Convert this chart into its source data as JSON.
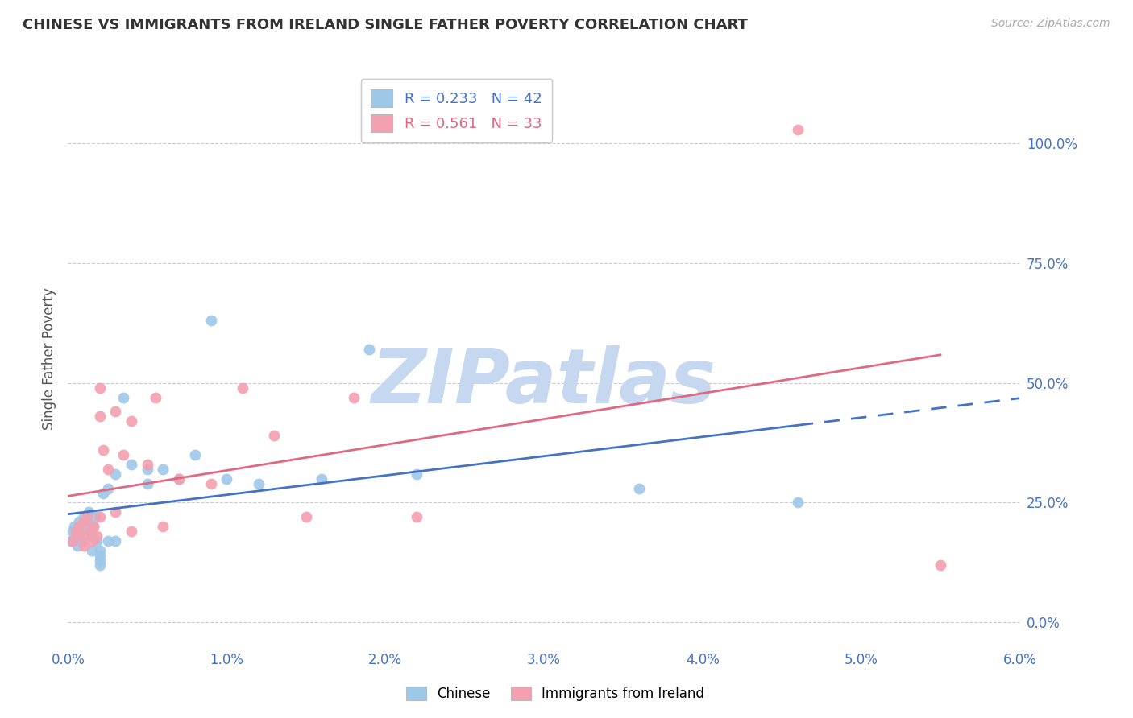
{
  "title": "CHINESE VS IMMIGRANTS FROM IRELAND SINGLE FATHER POVERTY CORRELATION CHART",
  "source": "Source: ZipAtlas.com",
  "ylabel": "Single Father Poverty",
  "xlim": [
    0.0,
    0.06
  ],
  "ylim": [
    -0.05,
    1.15
  ],
  "right_yticks": [
    0.0,
    0.25,
    0.5,
    0.75,
    1.0
  ],
  "right_yticklabels": [
    "0.0%",
    "25.0%",
    "50.0%",
    "75.0%",
    "100.0%"
  ],
  "xticks": [
    0.0,
    0.01,
    0.02,
    0.03,
    0.04,
    0.05,
    0.06
  ],
  "xticklabels": [
    "0.0%",
    "1.0%",
    "2.0%",
    "3.0%",
    "4.0%",
    "5.0%",
    "6.0%"
  ],
  "chinese_color": "#9EC8E8",
  "ireland_color": "#F4A0B0",
  "chinese_line_color": "#4472C4",
  "ireland_line_color": "#E06880",
  "legend_R1": "R = 0.233",
  "legend_N1": "N = 42",
  "legend_R2": "R = 0.561",
  "legend_N2": "N = 33",
  "watermark": "ZIPatlas",
  "watermark_color": "#C5D8F0",
  "chinese_x": [
    0.0002,
    0.0003,
    0.0004,
    0.0005,
    0.0006,
    0.0007,
    0.0008,
    0.0009,
    0.001,
    0.001,
    0.0012,
    0.0013,
    0.0014,
    0.0015,
    0.0015,
    0.0016,
    0.0017,
    0.0018,
    0.002,
    0.002,
    0.002,
    0.002,
    0.0022,
    0.0025,
    0.0025,
    0.003,
    0.003,
    0.0035,
    0.004,
    0.005,
    0.005,
    0.006,
    0.007,
    0.008,
    0.009,
    0.01,
    0.012,
    0.016,
    0.019,
    0.022,
    0.036,
    0.046
  ],
  "chinese_y": [
    0.17,
    0.19,
    0.2,
    0.18,
    0.16,
    0.21,
    0.19,
    0.17,
    0.22,
    0.2,
    0.21,
    0.23,
    0.19,
    0.18,
    0.15,
    0.2,
    0.22,
    0.17,
    0.15,
    0.14,
    0.13,
    0.12,
    0.27,
    0.28,
    0.17,
    0.31,
    0.17,
    0.47,
    0.33,
    0.29,
    0.32,
    0.32,
    0.3,
    0.35,
    0.63,
    0.3,
    0.29,
    0.3,
    0.57,
    0.31,
    0.28,
    0.25
  ],
  "ireland_x": [
    0.0003,
    0.0005,
    0.0007,
    0.0009,
    0.001,
    0.001,
    0.0012,
    0.0014,
    0.0015,
    0.0016,
    0.0018,
    0.002,
    0.002,
    0.002,
    0.0022,
    0.0025,
    0.003,
    0.003,
    0.0035,
    0.004,
    0.004,
    0.005,
    0.0055,
    0.006,
    0.007,
    0.009,
    0.011,
    0.013,
    0.015,
    0.018,
    0.022,
    0.046,
    0.055
  ],
  "ireland_y": [
    0.17,
    0.19,
    0.2,
    0.18,
    0.16,
    0.21,
    0.22,
    0.19,
    0.17,
    0.2,
    0.18,
    0.43,
    0.49,
    0.22,
    0.36,
    0.32,
    0.44,
    0.23,
    0.35,
    0.42,
    0.19,
    0.33,
    0.47,
    0.2,
    0.3,
    0.29,
    0.49,
    0.39,
    0.22,
    0.47,
    0.22,
    1.03,
    0.12
  ]
}
